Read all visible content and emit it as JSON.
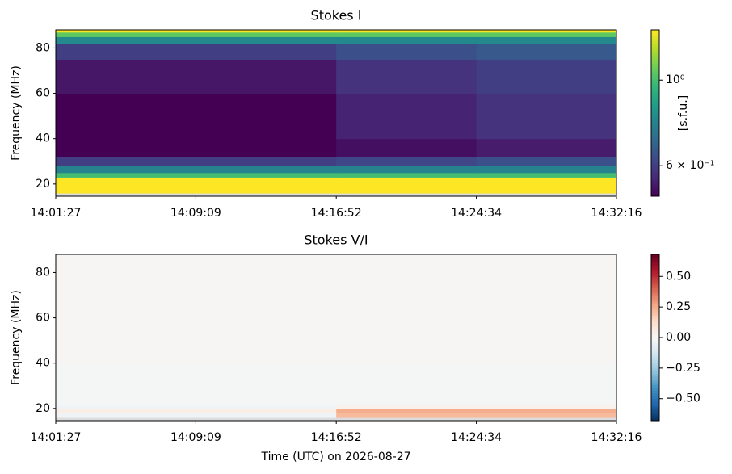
{
  "chart_data": [
    {
      "type": "heatmap",
      "title": "Stokes I",
      "ylabel": "Frequency (MHz)",
      "xlim": [
        "14:01:27",
        "14:32:16"
      ],
      "xticks": [
        "14:01:27",
        "14:09:09",
        "14:16:52",
        "14:24:34",
        "14:32:16"
      ],
      "ylim": [
        14.6,
        88
      ],
      "yticks": [
        20,
        40,
        60,
        80
      ],
      "freq_edges": [
        14.6,
        16,
        23,
        25,
        28,
        32,
        40,
        60,
        75,
        82,
        85,
        87,
        88
      ],
      "values": [
        [
          null,
          null,
          null,
          null
        ],
        [
          1.5,
          1.5,
          1.5,
          1.5
        ],
        [
          1.0,
          1.0,
          1.0,
          1.0
        ],
        [
          0.78,
          0.78,
          0.78,
          0.78
        ],
        [
          0.6,
          0.6,
          0.62,
          0.64
        ],
        [
          0.5,
          0.5,
          0.52,
          0.54
        ],
        [
          0.5,
          0.5,
          0.55,
          0.58
        ],
        [
          0.53,
          0.53,
          0.58,
          0.6
        ],
        [
          0.6,
          0.6,
          0.64,
          0.66
        ],
        [
          0.8,
          0.8,
          0.8,
          0.8
        ],
        [
          1.05,
          1.05,
          1.05,
          1.05
        ],
        [
          1.4,
          1.4,
          1.4,
          1.4
        ]
      ],
      "colorbar": {
        "label": "[s.f.u.]",
        "scale": "log",
        "colormap": "viridis",
        "lim": [
          0.5,
          1.35
        ],
        "ticks": [
          {
            "value": 1,
            "label": "10⁰"
          },
          {
            "value": 0.6,
            "label": "6 × 10⁻¹"
          }
        ]
      }
    },
    {
      "type": "heatmap",
      "title": "Stokes V/I",
      "ylabel": "Frequency (MHz)",
      "xlabel": "Time (UTC) on 2026-08-27",
      "xlim": [
        "14:01:27",
        "14:32:16"
      ],
      "xticks": [
        "14:01:27",
        "14:09:09",
        "14:16:52",
        "14:24:34",
        "14:32:16"
      ],
      "ylim": [
        14.6,
        88
      ],
      "yticks": [
        20,
        40,
        60,
        80
      ],
      "freq_edges": [
        14.6,
        16,
        18,
        20,
        22,
        40,
        88
      ],
      "values": [
        [
          null,
          null,
          null,
          null
        ],
        [
          -0.03,
          -0.03,
          0.22,
          0.22
        ],
        [
          0.05,
          0.05,
          0.25,
          0.25
        ],
        [
          -0.02,
          -0.02,
          0.03,
          0.03
        ],
        [
          -0.01,
          -0.01,
          -0.01,
          -0.01
        ],
        [
          0.01,
          0.01,
          0.01,
          0.01
        ]
      ],
      "colorbar": {
        "scale": "linear",
        "colormap": "RdBu_r",
        "lim": [
          -0.68,
          0.68
        ],
        "ticks": [
          {
            "value": 0.5,
            "label": "0.50"
          },
          {
            "value": 0.25,
            "label": "0.25"
          },
          {
            "value": 0,
            "label": "0.00"
          },
          {
            "value": -0.25,
            "label": "−0.25"
          },
          {
            "value": -0.5,
            "label": "−0.50"
          }
        ]
      }
    }
  ]
}
